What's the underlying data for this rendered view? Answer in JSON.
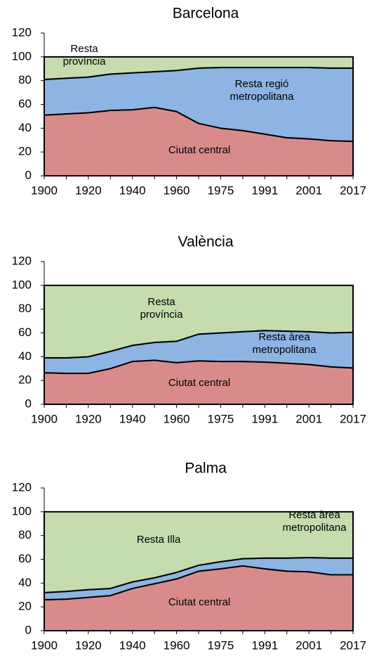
{
  "chart_data": [
    {
      "type": "stacked-area",
      "title": "Barcelona",
      "categories": [
        "1900",
        null,
        "1920",
        null,
        "1940",
        null,
        "1960",
        null,
        "1975",
        null,
        "1991",
        null,
        "2001",
        null,
        "2017"
      ],
      "series": [
        {
          "name": "Ciutat central",
          "color": "#d98b8b",
          "values": [
            51,
            52,
            53,
            55,
            55.5,
            57.5,
            54,
            44,
            40,
            38,
            35,
            32,
            31,
            29.5,
            29
          ]
        },
        {
          "name": "Resta regió metropolitana",
          "color": "#8db4e2",
          "values": [
            30,
            30,
            30,
            30.5,
            31,
            30,
            34.5,
            46.5,
            51,
            53,
            56,
            59,
            60,
            61,
            61.5
          ]
        },
        {
          "name": "Resta província",
          "color": "#c4dcae",
          "values": [
            19,
            18,
            17,
            14.5,
            13.5,
            12.5,
            11.5,
            9.5,
            9,
            9,
            9,
            9,
            9,
            9.5,
            9.5
          ]
        }
      ],
      "annotations": [
        [
          "Resta",
          "província"
        ],
        [
          "Resta regió",
          "metropolitana"
        ],
        [
          "Ciutat central"
        ]
      ],
      "ylim": [
        0,
        120
      ],
      "yticks": [
        0,
        20,
        40,
        60,
        80,
        100,
        120
      ]
    },
    {
      "type": "stacked-area",
      "title": "València",
      "categories": [
        "1900",
        null,
        "1920",
        null,
        "1940",
        null,
        "1960",
        null,
        "1975",
        null,
        "1991",
        null,
        "2001",
        null,
        "2017"
      ],
      "series": [
        {
          "name": "Ciutat central",
          "color": "#d98b8b",
          "values": [
            26.5,
            26,
            26,
            30,
            36,
            37,
            35,
            36.5,
            36,
            36,
            35.5,
            34.5,
            33.5,
            31.5,
            30.5
          ]
        },
        {
          "name": "Resta àrea metropolitana",
          "color": "#8db4e2",
          "values": [
            12.5,
            13,
            14,
            14.5,
            13.5,
            15,
            18,
            22.5,
            24,
            25,
            26.5,
            27,
            27.5,
            28.5,
            30
          ]
        },
        {
          "name": "Resta província",
          "color": "#c4dcae",
          "values": [
            61,
            61,
            60,
            55.5,
            50.5,
            48,
            47,
            41,
            40,
            39,
            38,
            38.5,
            39,
            40,
            39.5
          ]
        }
      ],
      "annotations": [
        [
          "Resta",
          "província"
        ],
        [
          "Resta àrea",
          "metropolitana"
        ],
        [
          "Ciutat central"
        ]
      ],
      "ylim": [
        0,
        120
      ],
      "yticks": [
        0,
        20,
        40,
        60,
        80,
        100,
        120
      ]
    },
    {
      "type": "stacked-area",
      "title": "Palma",
      "categories": [
        "1900",
        null,
        "1920",
        null,
        "1940",
        null,
        "1960",
        null,
        "1975",
        null,
        "1991",
        null,
        "2001",
        null,
        "2017"
      ],
      "series": [
        {
          "name": "Ciutat central",
          "color": "#d98b8b",
          "values": [
            26,
            26.5,
            28,
            29.5,
            35.5,
            39.5,
            43.5,
            50,
            52,
            54.5,
            52,
            50,
            49.5,
            47,
            47
          ]
        },
        {
          "name": "Resta àrea metropolitana",
          "color": "#8db4e2",
          "values": [
            6,
            6.5,
            6.5,
            6,
            5.5,
            5,
            5.5,
            5,
            6,
            6,
            9,
            11,
            12,
            14,
            14
          ]
        },
        {
          "name": "Resta Illa",
          "color": "#c4dcae",
          "values": [
            68,
            67,
            65.5,
            64.5,
            59,
            55.5,
            51,
            45,
            42,
            39.5,
            39,
            39,
            38.5,
            39,
            39
          ]
        }
      ],
      "annotations": [
        [
          "Resta Illa"
        ],
        [
          "Resta àrea",
          "metropolitana"
        ],
        [
          "Ciutat central"
        ]
      ],
      "ylim": [
        0,
        120
      ],
      "yticks": [
        0,
        20,
        40,
        60,
        80,
        100,
        120
      ]
    }
  ]
}
